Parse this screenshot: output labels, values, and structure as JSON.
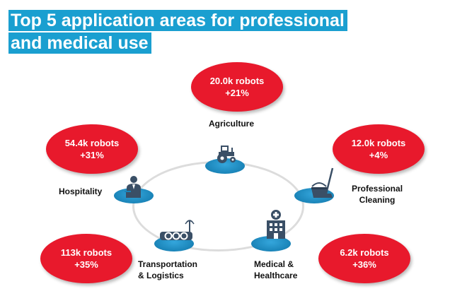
{
  "title": {
    "line1": "Top 5 application areas for professional",
    "line2": "and medical use"
  },
  "colors": {
    "title_bg": "#1a9fd0",
    "stat_bubble": "#e8192c",
    "disc": "#1a84b8",
    "ring": "#dcdcdc",
    "icon": "#3a4f66"
  },
  "areas": [
    {
      "name_lines": [
        "Agriculture"
      ],
      "robots": "20.0k robots",
      "growth": "+21%",
      "icon": "tractor-icon"
    },
    {
      "name_lines": [
        "Professional",
        "Cleaning"
      ],
      "robots": "12.0k robots",
      "growth": "+4%",
      "icon": "cleaning-bucket-icon"
    },
    {
      "name_lines": [
        "Medical &",
        "Healthcare"
      ],
      "robots": "6.2k robots",
      "growth": "+36%",
      "icon": "hospital-icon"
    },
    {
      "name_lines": [
        "Transportation",
        "& Logistics"
      ],
      "robots": "113k robots",
      "growth": "+35%",
      "icon": "agv-vehicle-icon"
    },
    {
      "name_lines": [
        "Hospitality"
      ],
      "robots": "54.4k robots",
      "growth": "+31%",
      "icon": "waiter-icon"
    }
  ]
}
